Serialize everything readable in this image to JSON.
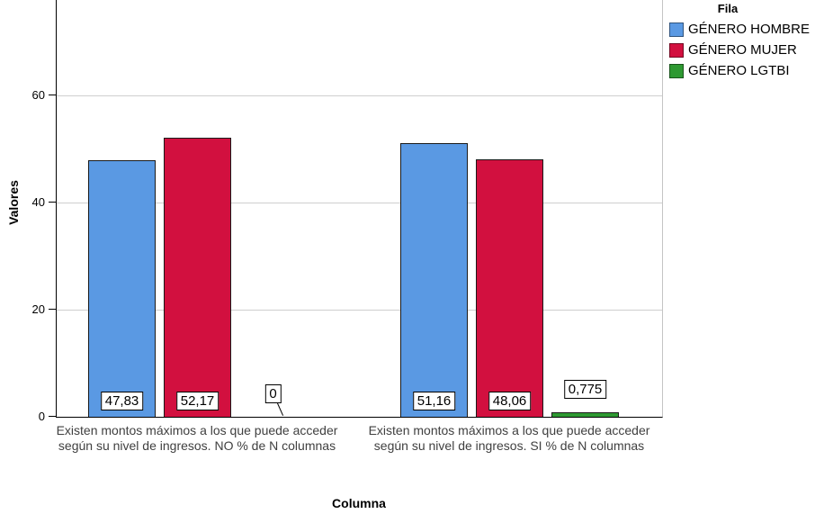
{
  "chart_data": {
    "type": "bar",
    "title": "",
    "xlabel": "Columna",
    "ylabel": "Valores",
    "ylim": [
      0,
      78
    ],
    "yticks": [
      0,
      20,
      40,
      60
    ],
    "grid": true,
    "legend_title": "Fila",
    "legend_position": "top-right",
    "categories": [
      "Existen montos máximos a los que puede acceder según su nivel de ingresos. NO % de N columnas",
      "Existen montos máximos a los que puede acceder según su nivel de ingresos. SI % de N columnas"
    ],
    "series": [
      {
        "name": "GÉNERO HOMBRE",
        "color": "#5A99E3",
        "values": [
          47.83,
          51.16
        ],
        "labels": [
          "47,83",
          "51,16"
        ]
      },
      {
        "name": "GÉNERO MUJER",
        "color": "#D2103F",
        "values": [
          52.17,
          48.06
        ],
        "labels": [
          "52,17",
          "48,06"
        ]
      },
      {
        "name": "GÉNERO LGTBI",
        "color": "#2E9932",
        "values": [
          0,
          0.775
        ],
        "labels": [
          "0",
          "0,775"
        ]
      }
    ]
  }
}
